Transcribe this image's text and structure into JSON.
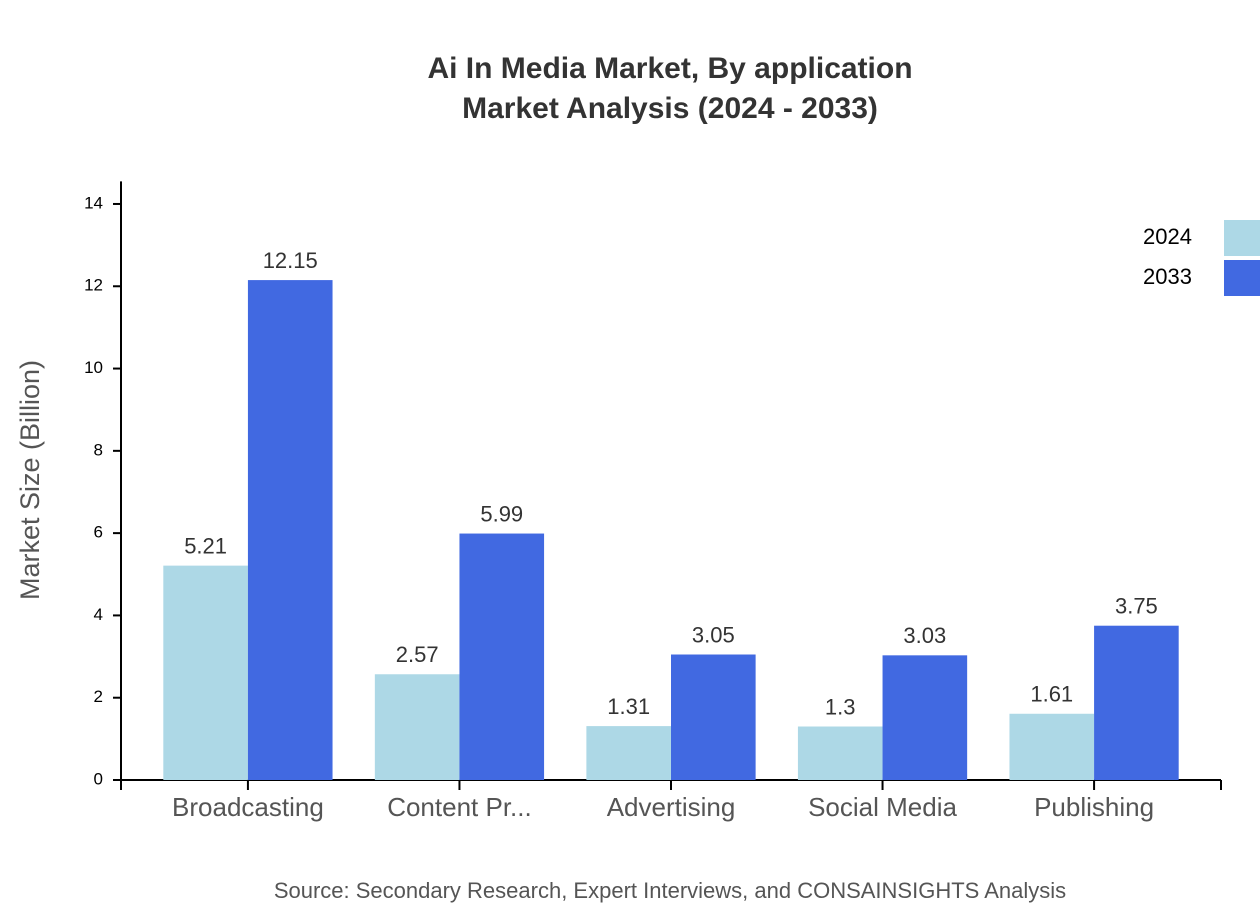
{
  "chart_data": {
    "type": "bar",
    "title": "Ai In Media Market, By application",
    "subtitle": "Market Analysis (2024 - 2033)",
    "y_label": "Market Size (Billion)",
    "source": "Source: Secondary Research, Expert Interviews, and CONSAINSIGHTS Analysis",
    "categories": [
      "Broadcasting",
      "Content Pr...",
      "Advertising",
      "Social Media",
      "Publishing"
    ],
    "series": [
      {
        "name": "2024",
        "color": "#add8e6",
        "values": [
          5.21,
          2.57,
          1.31,
          1.3,
          1.61
        ]
      },
      {
        "name": "2033",
        "color": "#4169e1",
        "values": [
          12.15,
          5.99,
          3.05,
          3.03,
          3.75
        ]
      }
    ],
    "ylim": [
      0,
      14.5
    ],
    "yticks": [
      0,
      2,
      4,
      6,
      8,
      10,
      12,
      14
    ],
    "grid": false,
    "legend": "top-right"
  }
}
